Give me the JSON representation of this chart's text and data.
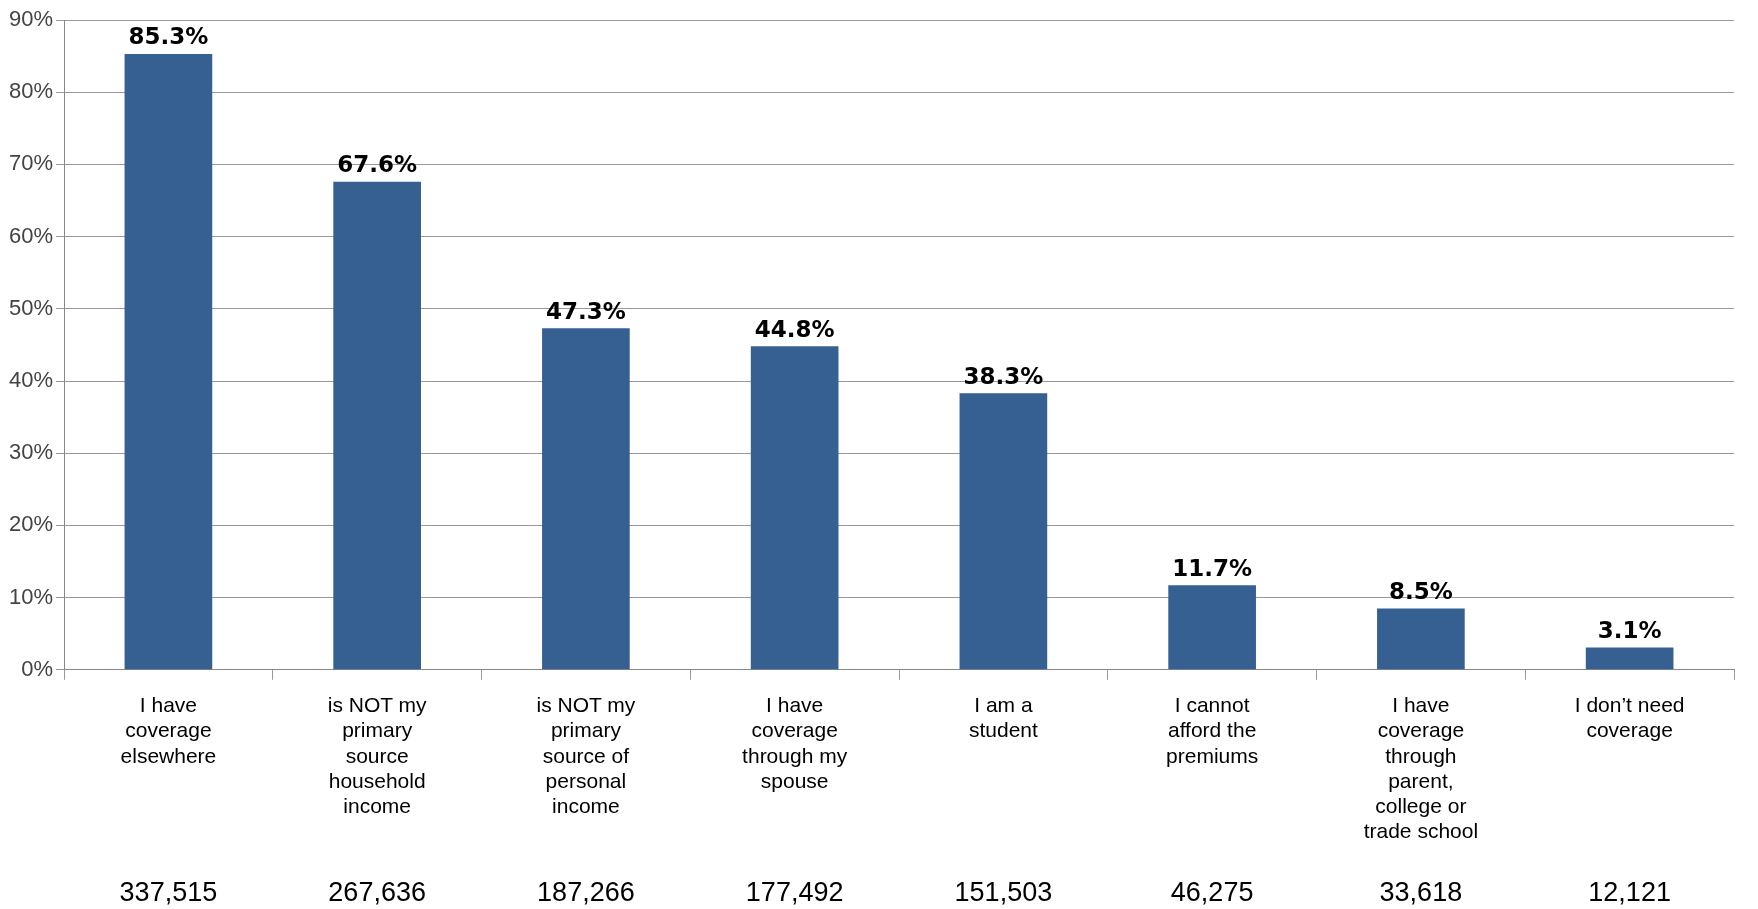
{
  "chart_data": {
    "type": "bar",
    "categories": [
      "I have coverage elsewhere",
      "is NOT my primary source household income",
      "is NOT my primary source of personal income",
      "I have coverage through my spouse",
      "I am a student",
      "I cannot afford the premiums",
      "I have coverage through parent, college or trade school",
      "I don’t need coverage"
    ],
    "values": [
      85.3,
      67.6,
      47.3,
      44.8,
      38.3,
      11.7,
      8.5,
      3.1
    ],
    "value_labels": [
      "85.3%",
      "67.6%",
      "47.3%",
      "44.8%",
      "38.3%",
      "11.7%",
      "8.5%",
      "3.1%"
    ],
    "color": "#366092",
    "ylim": [
      0,
      90
    ],
    "yticks": [
      {
        "value": 0,
        "label": "0%"
      },
      {
        "value": 10,
        "label": "10%"
      },
      {
        "value": 20,
        "label": "20%"
      },
      {
        "value": 30,
        "label": "30%"
      },
      {
        "value": 40,
        "label": "40%"
      },
      {
        "value": 50,
        "label": "50%"
      },
      {
        "value": 60,
        "label": "60%"
      },
      {
        "value": 70,
        "label": "70%"
      },
      {
        "value": 80,
        "label": "80%"
      },
      {
        "value": 90,
        "label": "90%"
      }
    ],
    "grid": "y",
    "annotations": [
      "337,515",
      "267,636",
      "187,266",
      "177,492",
      "151,503",
      "46,275",
      "33,618",
      "12,121"
    ]
  }
}
